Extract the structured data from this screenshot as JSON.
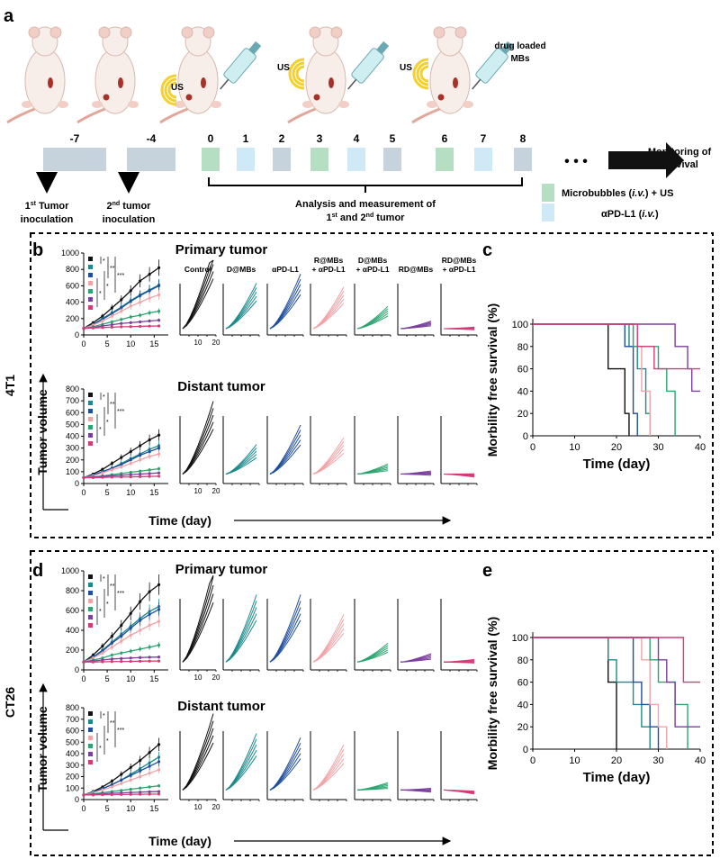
{
  "panel_labels": {
    "a": "a",
    "b": "b",
    "c": "c",
    "d": "d",
    "e": "e"
  },
  "timeline": {
    "labels": [
      "-7",
      "-4",
      "0",
      "1",
      "2",
      "3",
      "4",
      "5",
      "6",
      "7",
      "8"
    ],
    "box_colors": [
      "#c6d2dc",
      "#c6d2dc",
      "#b5dec3",
      "#cfe9f6",
      "#c6d2dc",
      "#b5dec3",
      "#cfe9f6",
      "#c6d2dc",
      "#b5dec3",
      "#cfe9f6",
      "#c6d2dc"
    ],
    "first_tumor": {
      "pre": "1",
      "sup": "st",
      "post": " Tumor",
      "line2": "inoculation"
    },
    "second_tumor": {
      "pre": "2",
      "sup": "nd",
      "post": " tumor",
      "line2": "inoculation"
    },
    "analysis_line1": "Analysis and measurement of",
    "analysis_line2": {
      "pre1": "1",
      "sup1": "st",
      "mid": " and 2",
      "sup2": "nd",
      "post": " tumor"
    },
    "monitoring_line1": "Monitoring of",
    "monitoring_line2": "survival",
    "ellipsis": "• • •",
    "us_label": "US",
    "drug_label_line1": "drug loaded",
    "drug_label_line2": "MBs",
    "legend": [
      {
        "color": "#b5dec3",
        "text_pre": "Microbubbles (",
        "italic": "i.v.",
        "text_post": ") + US"
      },
      {
        "color": "#cfe9f6",
        "text_pre": "αPD-L1 (",
        "italic": "i.v.",
        "text_post": ")"
      }
    ]
  },
  "group_colors": [
    "#111111",
    "#1b8a8c",
    "#1f4e9e",
    "#f2a3a6",
    "#2ba56f",
    "#7b3f9e",
    "#d63a77"
  ],
  "group_labels": [
    "Control",
    "D@MBs",
    "αPD-L1",
    "R@MBs\n+ αPD-L1",
    "D@MBs\n+ αPD-L1",
    "RD@MBs",
    "RD@MBs\n+ αPD-L1"
  ],
  "significance": [
    "*",
    "**",
    "***",
    "*",
    "*",
    "***",
    "***",
    "***"
  ],
  "side_labels": {
    "top": "4T1",
    "bottom": "CT26"
  },
  "axis_text": {
    "tumor_volume": "Tumor volume",
    "time_day": "Time (day)",
    "survival_y": "Morbility free survival (%)",
    "primary": "Primary tumor",
    "distant": "Distant tumor"
  },
  "chart_data": [
    {
      "id": "b-primary",
      "type": "line",
      "title": "Primary tumor",
      "model": "4T1",
      "x": [
        0,
        2,
        4,
        6,
        8,
        10,
        12,
        14,
        16
      ],
      "ylim": [
        0,
        1000
      ],
      "yticks": [
        0,
        200,
        400,
        600,
        800,
        1000
      ],
      "xticks": [
        0,
        5,
        10,
        15
      ],
      "series": [
        {
          "name": "Control",
          "values": [
            80,
            150,
            230,
            330,
            430,
            540,
            660,
            740,
            820
          ]
        },
        {
          "name": "D@MBs",
          "values": [
            80,
            130,
            200,
            270,
            340,
            420,
            490,
            550,
            610
          ]
        },
        {
          "name": "αPD-L1",
          "values": [
            80,
            130,
            190,
            260,
            330,
            410,
            480,
            540,
            600
          ]
        },
        {
          "name": "R@MBs + αPD-L1",
          "values": [
            80,
            120,
            170,
            230,
            290,
            350,
            400,
            450,
            490
          ]
        },
        {
          "name": "D@MBs + αPD-L1",
          "values": [
            80,
            100,
            130,
            160,
            190,
            220,
            240,
            270,
            290
          ]
        },
        {
          "name": "RD@MBs",
          "values": [
            80,
            90,
            110,
            125,
            140,
            150,
            160,
            170,
            180
          ]
        },
        {
          "name": "RD@MBs + αPD-L1",
          "values": [
            80,
            85,
            90,
            95,
            100,
            102,
            105,
            108,
            110
          ]
        }
      ]
    },
    {
      "id": "b-distant",
      "type": "line",
      "title": "Distant tumor",
      "model": "4T1",
      "x": [
        0,
        2,
        4,
        6,
        8,
        10,
        12,
        14,
        16
      ],
      "ylim": [
        0,
        800
      ],
      "yticks": [
        0,
        100,
        200,
        300,
        400,
        500,
        600,
        700,
        800
      ],
      "xticks": [
        0,
        5,
        10,
        15
      ],
      "series": [
        {
          "name": "Control",
          "values": [
            50,
            80,
            120,
            170,
            220,
            270,
            320,
            370,
            410
          ]
        },
        {
          "name": "D@MBs",
          "values": [
            50,
            70,
            100,
            130,
            170,
            210,
            250,
            290,
            320
          ]
        },
        {
          "name": "αPD-L1",
          "values": [
            50,
            70,
            100,
            130,
            160,
            200,
            240,
            270,
            300
          ]
        },
        {
          "name": "R@MBs + αPD-L1",
          "values": [
            50,
            65,
            90,
            115,
            140,
            170,
            200,
            230,
            250
          ]
        },
        {
          "name": "D@MBs + αPD-L1",
          "values": [
            50,
            55,
            65,
            75,
            85,
            95,
            105,
            115,
            125
          ]
        },
        {
          "name": "RD@MBs",
          "values": [
            50,
            55,
            60,
            65,
            70,
            75,
            80,
            85,
            90
          ]
        },
        {
          "name": "RD@MBs + αPD-L1",
          "values": [
            50,
            50,
            52,
            54,
            55,
            56,
            58,
            60,
            62
          ]
        }
      ]
    },
    {
      "id": "d-primary",
      "type": "line",
      "title": "Primary tumor",
      "model": "CT26",
      "x": [
        0,
        2,
        4,
        6,
        8,
        10,
        12,
        14,
        16
      ],
      "ylim": [
        0,
        1000
      ],
      "yticks": [
        0,
        200,
        400,
        600,
        800,
        1000
      ],
      "xticks": [
        0,
        5,
        10,
        15
      ],
      "series": [
        {
          "name": "Control",
          "values": [
            80,
            150,
            240,
            340,
            450,
            570,
            690,
            790,
            860
          ]
        },
        {
          "name": "D@MBs",
          "values": [
            80,
            130,
            200,
            280,
            360,
            440,
            520,
            590,
            640
          ]
        },
        {
          "name": "αPD-L1",
          "values": [
            80,
            130,
            190,
            270,
            340,
            420,
            500,
            560,
            610
          ]
        },
        {
          "name": "R@MBs + αPD-L1",
          "values": [
            80,
            120,
            170,
            230,
            290,
            350,
            400,
            450,
            490
          ]
        },
        {
          "name": "D@MBs + αPD-L1",
          "values": [
            80,
            100,
            120,
            150,
            170,
            190,
            210,
            230,
            250
          ]
        },
        {
          "name": "RD@MBs",
          "values": [
            80,
            90,
            100,
            110,
            115,
            120,
            125,
            128,
            130
          ]
        },
        {
          "name": "RD@MBs + αPD-L1",
          "values": [
            80,
            80,
            82,
            84,
            85,
            86,
            88,
            89,
            90
          ]
        }
      ]
    },
    {
      "id": "d-distant",
      "type": "line",
      "title": "Distant tumor",
      "model": "CT26",
      "x": [
        0,
        2,
        4,
        6,
        8,
        10,
        12,
        14,
        16
      ],
      "ylim": [
        0,
        800
      ],
      "yticks": [
        0,
        100,
        200,
        300,
        400,
        500,
        600,
        700,
        800
      ],
      "xticks": [
        0,
        5,
        10,
        15
      ],
      "series": [
        {
          "name": "Control",
          "values": [
            40,
            70,
            110,
            160,
            220,
            280,
            340,
            410,
            480
          ]
        },
        {
          "name": "D@MBs",
          "values": [
            40,
            65,
            95,
            130,
            170,
            220,
            270,
            320,
            370
          ]
        },
        {
          "name": "αPD-L1",
          "values": [
            40,
            65,
            95,
            130,
            170,
            210,
            250,
            290,
            330
          ]
        },
        {
          "name": "R@MBs + αPD-L1",
          "values": [
            40,
            60,
            85,
            110,
            140,
            170,
            200,
            230,
            260
          ]
        },
        {
          "name": "D@MBs + αPD-L1",
          "values": [
            40,
            50,
            60,
            70,
            80,
            90,
            100,
            110,
            120
          ]
        },
        {
          "name": "RD@MBs",
          "values": [
            40,
            45,
            50,
            55,
            58,
            62,
            65,
            68,
            70
          ]
        },
        {
          "name": "RD@MBs + αPD-L1",
          "values": [
            40,
            40,
            42,
            43,
            44,
            45,
            46,
            47,
            48
          ]
        }
      ]
    },
    {
      "id": "c",
      "type": "line",
      "subtype": "kaplan-meier",
      "model": "4T1",
      "xlabel": "Time (day)",
      "ylabel": "Morbility free survival (%)",
      "xlim": [
        0,
        40
      ],
      "ylim": [
        0,
        100
      ],
      "xticks": [
        0,
        10,
        20,
        30,
        40
      ],
      "yticks": [
        0,
        20,
        40,
        60,
        80,
        100
      ],
      "series": [
        {
          "name": "Control",
          "steps": [
            [
              0,
              100
            ],
            [
              18,
              60
            ],
            [
              22,
              20
            ],
            [
              23,
              0
            ]
          ]
        },
        {
          "name": "D@MBs",
          "steps": [
            [
              0,
              100
            ],
            [
              23,
              80
            ],
            [
              25,
              60
            ],
            [
              27,
              20
            ],
            [
              28,
              0
            ]
          ]
        },
        {
          "name": "αPD-L1",
          "steps": [
            [
              0,
              100
            ],
            [
              22,
              80
            ],
            [
              24,
              20
            ],
            [
              25,
              0
            ]
          ]
        },
        {
          "name": "R@MBs + αPD-L1",
          "steps": [
            [
              0,
              100
            ],
            [
              24,
              80
            ],
            [
              26,
              40
            ],
            [
              28,
              0
            ]
          ]
        },
        {
          "name": "D@MBs + αPD-L1",
          "steps": [
            [
              0,
              100
            ],
            [
              24,
              80
            ],
            [
              30,
              60
            ],
            [
              32,
              40
            ],
            [
              34,
              0
            ]
          ]
        },
        {
          "name": "RD@MBs",
          "steps": [
            [
              0,
              100
            ],
            [
              34,
              80
            ],
            [
              37,
              60
            ],
            [
              38,
              40
            ],
            [
              40,
              40
            ]
          ]
        },
        {
          "name": "RD@MBs + αPD-L1",
          "steps": [
            [
              0,
              100
            ],
            [
              25,
              80
            ],
            [
              29,
              60
            ],
            [
              37,
              60
            ],
            [
              40,
              60
            ]
          ]
        }
      ]
    },
    {
      "id": "e",
      "type": "line",
      "subtype": "kaplan-meier",
      "model": "CT26",
      "xlabel": "Time (day)",
      "ylabel": "Morbility free survival (%)",
      "xlim": [
        0,
        40
      ],
      "ylim": [
        0,
        100
      ],
      "xticks": [
        0,
        10,
        20,
        30,
        40
      ],
      "yticks": [
        0,
        20,
        40,
        60,
        80,
        100
      ],
      "series": [
        {
          "name": "Control",
          "steps": [
            [
              0,
              100
            ],
            [
              18,
              60
            ],
            [
              20,
              0
            ]
          ]
        },
        {
          "name": "D@MBs",
          "steps": [
            [
              0,
              100
            ],
            [
              18,
              80
            ],
            [
              20,
              60
            ],
            [
              24,
              40
            ],
            [
              26,
              20
            ],
            [
              28,
              0
            ]
          ]
        },
        {
          "name": "αPD-L1",
          "steps": [
            [
              0,
              100
            ],
            [
              24,
              60
            ],
            [
              26,
              40
            ],
            [
              28,
              20
            ],
            [
              30,
              0
            ]
          ]
        },
        {
          "name": "R@MBs + αPD-L1",
          "steps": [
            [
              0,
              100
            ],
            [
              26,
              80
            ],
            [
              28,
              40
            ],
            [
              30,
              20
            ],
            [
              32,
              0
            ]
          ]
        },
        {
          "name": "D@MBs + αPD-L1",
          "steps": [
            [
              0,
              100
            ],
            [
              28,
              80
            ],
            [
              30,
              60
            ],
            [
              34,
              40
            ],
            [
              37,
              0
            ]
          ]
        },
        {
          "name": "RD@MBs",
          "steps": [
            [
              0,
              100
            ],
            [
              30,
              80
            ],
            [
              32,
              60
            ],
            [
              34,
              20
            ],
            [
              40,
              20
            ]
          ]
        },
        {
          "name": "RD@MBs + αPD-L1",
          "steps": [
            [
              0,
              100
            ],
            [
              32,
              100
            ],
            [
              36,
              60
            ],
            [
              40,
              60
            ]
          ]
        }
      ]
    }
  ],
  "individual_curves": {
    "b-primary": [
      920,
      560,
      660,
      520,
      310,
      150,
      85
    ],
    "b-distant": [
      590,
      280,
      420,
      330,
      140,
      90,
      70
    ],
    "d-primary": [
      880,
      650,
      650,
      480,
      230,
      140,
      90
    ],
    "d-distant": [
      610,
      470,
      440,
      390,
      120,
      80,
      60
    ]
  }
}
